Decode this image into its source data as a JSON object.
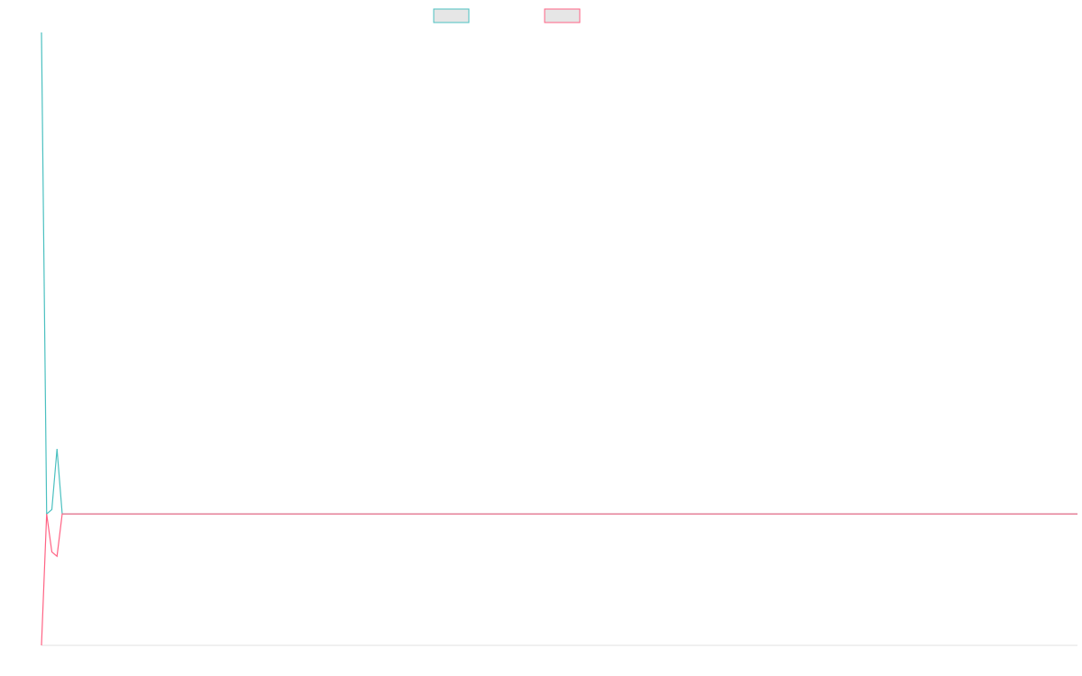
{
  "chart_data": {
    "type": "line",
    "x": [
      0,
      1,
      2,
      3,
      4,
      200
    ],
    "xlim": [
      0,
      200
    ],
    "ylim": [
      -27.3,
      100
    ],
    "legend": "top",
    "series": [
      {
        "color": "#4bc0c0",
        "values": [
          100,
          0,
          0.9,
          13.5,
          0,
          0
        ]
      },
      {
        "color": "#ff6384",
        "values": [
          -27.3,
          0,
          -7.9,
          -8.8,
          0,
          0
        ]
      }
    ]
  }
}
